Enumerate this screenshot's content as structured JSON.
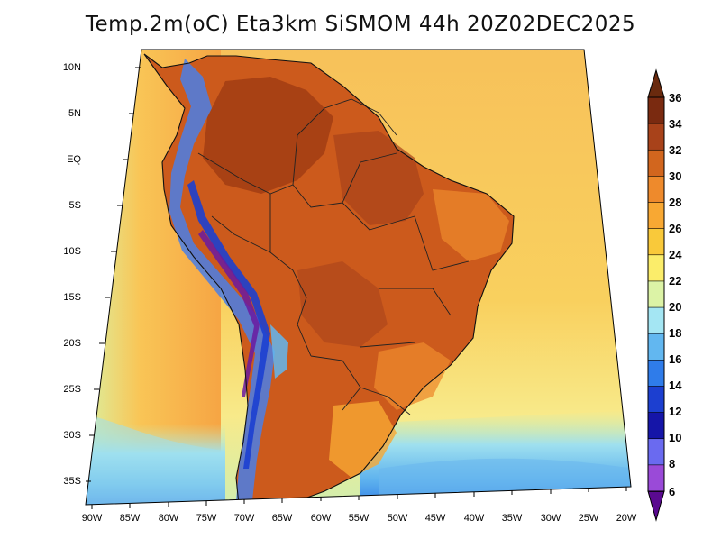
{
  "title": "Temp.2m(oC) Eta3km SiSMOM 44h 20Z02DEC2025",
  "map": {
    "lat_labels": [
      "10N",
      "5N",
      "EQ",
      "5S",
      "10S",
      "15S",
      "20S",
      "25S",
      "30S",
      "35S"
    ],
    "lon_labels": [
      "90W",
      "85W",
      "80W",
      "75W",
      "70W",
      "65W",
      "60W",
      "55W",
      "50W",
      "45W",
      "40W",
      "35W",
      "30W",
      "25W",
      "20W"
    ],
    "colors": {
      "ocean_warm": "#f7b24e",
      "ocean_mid": "#fbd35c",
      "ocean_cool": "#f7ee8c",
      "land_hot": "#cc5a1c",
      "land_very_hot": "#9c3a12",
      "andes": "#4a7fe6"
    }
  },
  "colorbar": {
    "labels": [
      "36",
      "34",
      "32",
      "30",
      "28",
      "26",
      "24",
      "22",
      "20",
      "18",
      "16",
      "14",
      "12",
      "10",
      "8",
      "6"
    ],
    "colors": [
      "#7a2a10",
      "#a8421a",
      "#d2661e",
      "#ee8a2c",
      "#f8a833",
      "#f9c93a",
      "#fbed6a",
      "#dcf3a6",
      "#a4e6f3",
      "#62b7f0",
      "#2f7cea",
      "#1c3fd0",
      "#1515a8",
      "#6a6af0",
      "#9a4ad8",
      "#6a1aa0"
    ]
  }
}
